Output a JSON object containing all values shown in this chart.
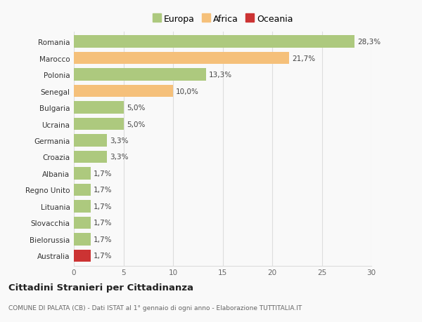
{
  "categories": [
    "Romania",
    "Marocco",
    "Polonia",
    "Senegal",
    "Bulgaria",
    "Ucraina",
    "Germania",
    "Croazia",
    "Albania",
    "Regno Unito",
    "Lituania",
    "Slovacchia",
    "Bielorussia",
    "Australia"
  ],
  "values": [
    28.3,
    21.7,
    13.3,
    10.0,
    5.0,
    5.0,
    3.3,
    3.3,
    1.7,
    1.7,
    1.7,
    1.7,
    1.7,
    1.7
  ],
  "labels": [
    "28,3%",
    "21,7%",
    "13,3%",
    "10,0%",
    "5,0%",
    "5,0%",
    "3,3%",
    "3,3%",
    "1,7%",
    "1,7%",
    "1,7%",
    "1,7%",
    "1,7%",
    "1,7%"
  ],
  "colors": [
    "#adc97e",
    "#f5c07a",
    "#adc97e",
    "#f5c07a",
    "#adc97e",
    "#adc97e",
    "#adc97e",
    "#adc97e",
    "#adc97e",
    "#adc97e",
    "#adc97e",
    "#adc97e",
    "#adc97e",
    "#cc3333"
  ],
  "legend_labels": [
    "Europa",
    "Africa",
    "Oceania"
  ],
  "legend_colors": [
    "#adc97e",
    "#f5c07a",
    "#cc3333"
  ],
  "xlim": [
    0,
    30
  ],
  "xticks": [
    0,
    5,
    10,
    15,
    20,
    25,
    30
  ],
  "title": "Cittadini Stranieri per Cittadinanza",
  "subtitle": "COMUNE DI PALATA (CB) - Dati ISTAT al 1° gennaio di ogni anno - Elaborazione TUTTITALIA.IT",
  "bg_color": "#f9f9f9",
  "grid_color": "#dddddd",
  "bar_height": 0.75
}
